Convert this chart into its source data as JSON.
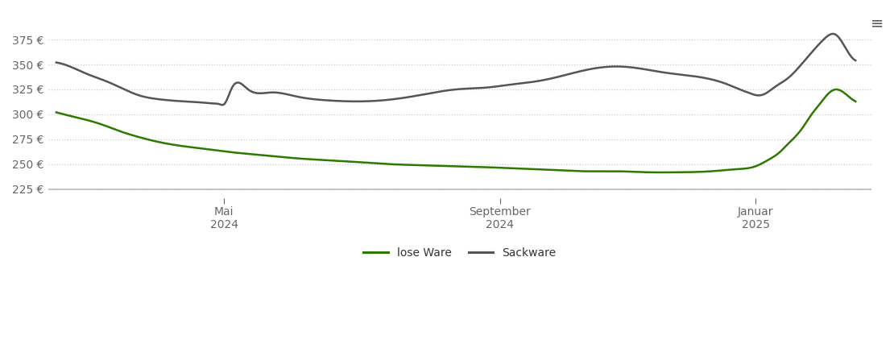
{
  "background_color": "#ffffff",
  "plot_bg_color": "#ffffff",
  "grid_color": "#cccccc",
  "y_ticks": [
    225,
    250,
    275,
    300,
    325,
    350,
    375
  ],
  "y_min": 216,
  "y_max": 392,
  "legend_labels": [
    "lose Ware",
    "Sackware"
  ],
  "lose_ware_color": "#2d7a00",
  "sackware_color": "#555555",
  "x_tick_labels": [
    "Mai\n2024",
    "September\n2024",
    "Januar\n2025"
  ],
  "x_tick_positions": [
    0.21,
    0.555,
    0.875
  ],
  "lose_ware_x": [
    0.0,
    0.02,
    0.04,
    0.06,
    0.08,
    0.1,
    0.13,
    0.16,
    0.19,
    0.22,
    0.26,
    0.3,
    0.34,
    0.38,
    0.42,
    0.46,
    0.5,
    0.54,
    0.57,
    0.6,
    0.63,
    0.66,
    0.7,
    0.74,
    0.78,
    0.82,
    0.85,
    0.875,
    0.89,
    0.905,
    0.915,
    0.925,
    0.935,
    0.945,
    0.955,
    0.965,
    0.975,
    0.985,
    1.0
  ],
  "lose_ware_y": [
    302,
    298,
    294,
    289,
    283,
    278,
    272,
    268,
    265,
    262,
    259,
    256,
    254,
    252,
    250,
    249,
    248,
    247,
    246,
    245,
    244,
    243,
    243,
    242,
    242,
    243,
    245,
    248,
    254,
    262,
    270,
    278,
    288,
    300,
    310,
    320,
    325,
    322,
    313
  ],
  "sackware_x": [
    0.0,
    0.02,
    0.04,
    0.06,
    0.08,
    0.1,
    0.13,
    0.16,
    0.18,
    0.195,
    0.205,
    0.21,
    0.22,
    0.24,
    0.27,
    0.3,
    0.34,
    0.38,
    0.42,
    0.46,
    0.5,
    0.54,
    0.57,
    0.6,
    0.63,
    0.66,
    0.7,
    0.73,
    0.76,
    0.8,
    0.84,
    0.855,
    0.865,
    0.872,
    0.878,
    0.885,
    0.9,
    0.915,
    0.93,
    0.945,
    0.96,
    0.975,
    0.985,
    1.0
  ],
  "sackware_y": [
    352,
    347,
    340,
    334,
    327,
    320,
    315,
    313,
    312,
    311,
    310,
    310,
    327,
    325,
    322,
    318,
    314,
    313,
    315,
    320,
    325,
    327,
    330,
    333,
    338,
    344,
    348,
    346,
    342,
    338,
    330,
    325,
    322,
    320,
    319,
    320,
    328,
    336,
    348,
    362,
    375,
    380,
    370,
    354
  ]
}
